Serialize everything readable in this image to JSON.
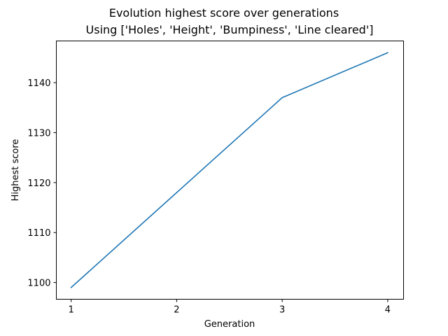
{
  "chart_data": {
    "type": "line",
    "title": "Evolution highest score over generations",
    "subtitle": "Using ['Holes', 'Height', 'Bumpiness', 'Line cleared']",
    "xlabel": "Generation",
    "ylabel": "Highest score",
    "x": [
      1,
      2,
      3,
      4
    ],
    "series": [
      {
        "values": [
          1099,
          1118,
          1137,
          1146
        ],
        "color": "#1f77b4"
      }
    ],
    "xticks": [
      "1",
      "2",
      "3",
      "4"
    ],
    "yticks": [
      1100,
      1110,
      1120,
      1130,
      1140
    ],
    "xlim": [
      0.86,
      4.15
    ],
    "ylim": [
      1096.65,
      1148.35
    ],
    "grid": false,
    "legend": "none"
  }
}
